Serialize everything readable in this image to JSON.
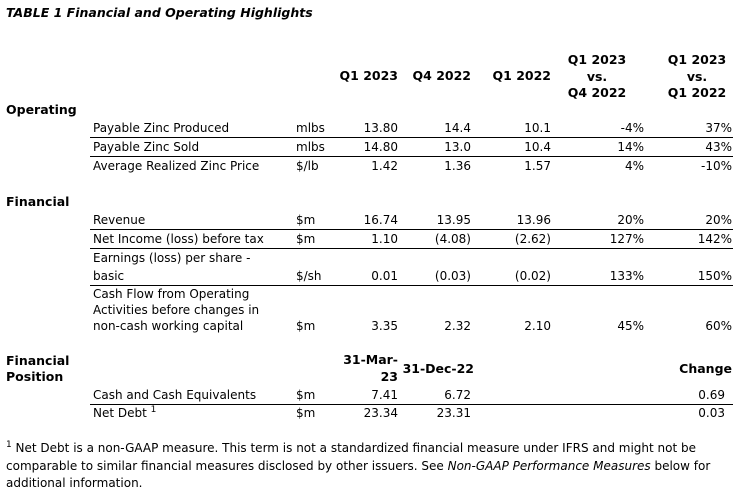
{
  "title": "TABLE 1 Financial and Operating Highlights",
  "headers": {
    "q1_2023": "Q1 2023",
    "q4_2022": "Q4 2022",
    "q1_2022": "Q1 2022",
    "vs_q4": [
      "Q1 2023",
      "vs.",
      "Q4 2022"
    ],
    "vs_q1": [
      "Q1 2023",
      "vs.",
      "Q1 2022"
    ]
  },
  "sections": {
    "operating": "Operating",
    "financial": "Financial",
    "position": [
      "Financial",
      "Position"
    ]
  },
  "operating": [
    {
      "label": "Payable Zinc Produced",
      "unit": "mlbs",
      "q1_2023": "13.80",
      "q4_2022": "14.4",
      "q1_2022": "10.1",
      "vs_q4": "-4%",
      "vs_q1": "37%"
    },
    {
      "label": "Payable Zinc Sold",
      "unit": "mlbs",
      "q1_2023": "14.80",
      "q4_2022": "13.0",
      "q1_2022": "10.4",
      "vs_q4": "14%",
      "vs_q1": "43%"
    },
    {
      "label": "Average Realized Zinc Price",
      "unit": "$/lb",
      "q1_2023": "1.42",
      "q4_2022": "1.36",
      "q1_2022": "1.57",
      "vs_q4": "4%",
      "vs_q1": "-10%"
    }
  ],
  "financial": [
    {
      "label": "Revenue",
      "unit": "$m",
      "q1_2023": "16.74",
      "q4_2022": "13.95",
      "q1_2022": "13.96",
      "vs_q4": "20%",
      "vs_q1": "20%"
    },
    {
      "label": "Net Income (loss) before tax",
      "unit": "$m",
      "q1_2023": "1.10",
      "q4_2022": "(4.08)",
      "q1_2022": "(2.62)",
      "vs_q4": "127%",
      "vs_q1": "142%"
    },
    {
      "label": [
        "Earnings (loss) per share -",
        "basic"
      ],
      "unit": "$/sh",
      "q1_2023": "0.01",
      "q4_2022": "(0.03)",
      "q1_2022": "(0.02)",
      "vs_q4": "133%",
      "vs_q1": "150%"
    },
    {
      "label": [
        "Cash Flow from Operating",
        "Activities before changes in",
        "non-cash working capital"
      ],
      "unit": "$m",
      "q1_2023": "3.35",
      "q4_2022": "2.32",
      "q1_2022": "2.10",
      "vs_q4": "45%",
      "vs_q1": "60%"
    }
  ],
  "position_headers": {
    "mar": [
      "31-Mar-",
      "23"
    ],
    "dec": "31-Dec-22",
    "change": "Change"
  },
  "position": [
    {
      "label": "Cash and Cash Equivalents",
      "unit": "$m",
      "mar": "7.41",
      "dec": "6.72",
      "change": "0.69"
    },
    {
      "label": "Net Debt",
      "sup": "1",
      "unit": "$m",
      "mar": "23.34",
      "dec": "23.31",
      "change": "0.03"
    }
  ],
  "footnote": {
    "sup": "1",
    "text1": " Net Debt is a non-GAAP measure. This term is not a standardized financial measure under IFRS and might not be comparable to similar financial measures disclosed by other issuers. See ",
    "italic": "Non-GAAP Performance Measures",
    "text2": " below for additional information."
  }
}
